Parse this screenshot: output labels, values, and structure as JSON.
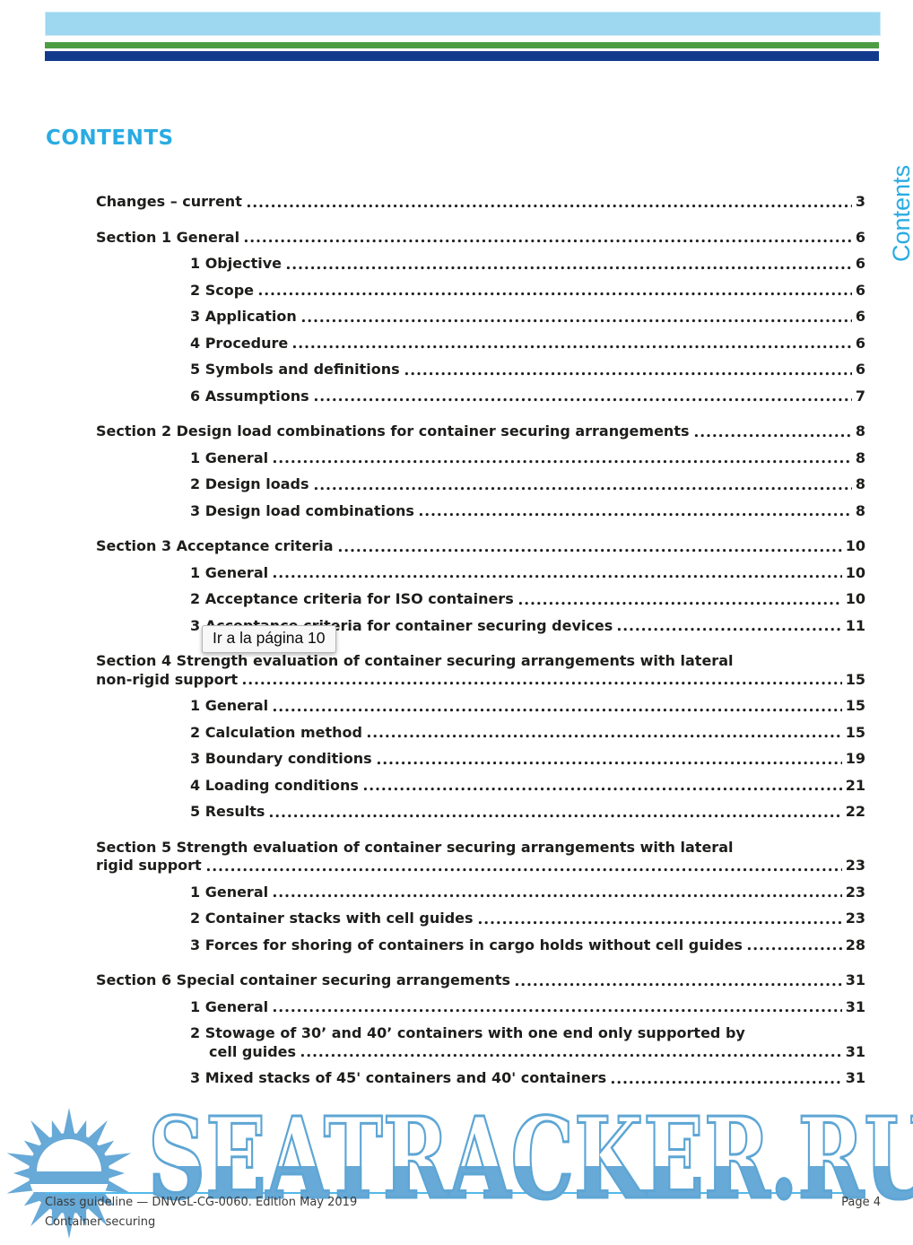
{
  "page": {
    "title": "CONTENTS",
    "side_tab": "Contents"
  },
  "toc": {
    "entries": [
      {
        "level": 0,
        "lines": [
          "Changes – current"
        ],
        "page": "3"
      },
      {
        "level": 0,
        "lines": [
          "Section 1 General"
        ],
        "page": "6"
      },
      {
        "level": 1,
        "lines": [
          "1 Objective"
        ],
        "page": "6"
      },
      {
        "level": 1,
        "lines": [
          "2 Scope"
        ],
        "page": "6"
      },
      {
        "level": 1,
        "lines": [
          "3 Application"
        ],
        "page": "6"
      },
      {
        "level": 1,
        "lines": [
          "4 Procedure"
        ],
        "page": "6"
      },
      {
        "level": 1,
        "lines": [
          "5 Symbols and definitions"
        ],
        "page": "6"
      },
      {
        "level": 1,
        "lines": [
          "6 Assumptions"
        ],
        "page": "7"
      },
      {
        "level": 0,
        "lines": [
          "Section 2 Design load combinations for container securing arrangements"
        ],
        "page": "8"
      },
      {
        "level": 1,
        "lines": [
          "1 General"
        ],
        "page": "8"
      },
      {
        "level": 1,
        "lines": [
          "2 Design loads"
        ],
        "page": "8"
      },
      {
        "level": 1,
        "lines": [
          "3 Design load combinations"
        ],
        "page": "8"
      },
      {
        "level": 0,
        "lines": [
          "Section 3 Acceptance criteria"
        ],
        "page": "10"
      },
      {
        "level": 1,
        "lines": [
          "1 General"
        ],
        "page": "10"
      },
      {
        "level": 1,
        "lines": [
          "2 Acceptance criteria for ISO containers"
        ],
        "page": "10"
      },
      {
        "level": 1,
        "lines": [
          "3 Acceptance criteria for container securing devices"
        ],
        "page": "11"
      },
      {
        "level": 0,
        "lines": [
          "Section 4 Strength evaluation of container securing arrangements with lateral",
          "non-rigid support"
        ],
        "page": "15"
      },
      {
        "level": 1,
        "lines": [
          "1 General"
        ],
        "page": "15"
      },
      {
        "level": 1,
        "lines": [
          "2 Calculation method"
        ],
        "page": "15"
      },
      {
        "level": 1,
        "lines": [
          "3 Boundary conditions"
        ],
        "page": "19"
      },
      {
        "level": 1,
        "lines": [
          "4 Loading conditions"
        ],
        "page": "21"
      },
      {
        "level": 1,
        "lines": [
          "5 Results"
        ],
        "page": "22"
      },
      {
        "level": 0,
        "lines": [
          "Section 5 Strength evaluation of container securing arrangements with lateral",
          "rigid support"
        ],
        "page": "23"
      },
      {
        "level": 1,
        "lines": [
          "1 General"
        ],
        "page": "23"
      },
      {
        "level": 1,
        "lines": [
          "2 Container stacks with cell guides"
        ],
        "page": "23"
      },
      {
        "level": 1,
        "lines": [
          "3 Forces for shoring of containers in cargo holds without cell guides"
        ],
        "page": "28"
      },
      {
        "level": 0,
        "lines": [
          "Section 6 Special container securing arrangements"
        ],
        "page": "31"
      },
      {
        "level": 1,
        "lines": [
          "1 General"
        ],
        "page": "31"
      },
      {
        "level": 1,
        "lines": [
          "2 Stowage of 30’ and 40’ containers with one end only supported by",
          "cell guides"
        ],
        "page": "31"
      },
      {
        "level": 1,
        "lines": [
          "3 Mixed stacks of 45' containers and 40' containers"
        ],
        "page": "31"
      }
    ]
  },
  "tooltip": {
    "text": "Ir a la página 10"
  },
  "footer": {
    "left": "Class guideline — DNVGL-CG-0060. Edition May 2019",
    "right": "Page 4",
    "second_line": "Container securing"
  },
  "watermark": {
    "text": "SEATRACKER.RU",
    "logo": "sun-logo"
  },
  "colors": {
    "accent_blue": "#29abe2",
    "bar_lightblue": "#9ed7f0",
    "bar_green": "#4c9c44",
    "bar_navy": "#123a8c",
    "text": "#1d1d1b",
    "footer_rule": "#53b9e9",
    "watermark_blue": "#67a9d7",
    "sun_blue": "#67a9d7"
  }
}
